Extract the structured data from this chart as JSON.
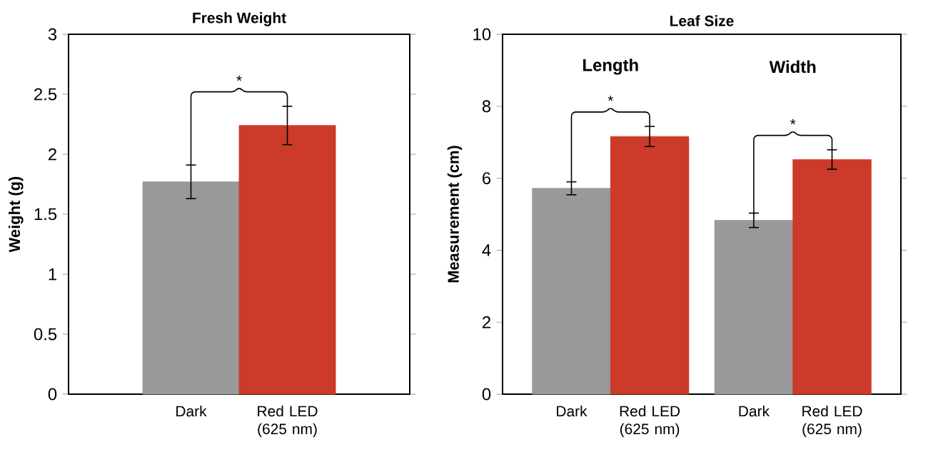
{
  "chart_data": [
    {
      "type": "bar",
      "title": "Fresh Weight",
      "ylabel": "Weight (g)",
      "categories": [
        "Dark",
        "Red LED (625 nm)"
      ],
      "values": [
        1.77,
        2.24
      ],
      "colors": [
        "#999999",
        "#cc3a2a"
      ],
      "errors": [
        0.14,
        0.16
      ],
      "ylim": [
        0,
        3
      ],
      "yticks": [
        0,
        0.5,
        1,
        1.5,
        2,
        2.5,
        3
      ],
      "annotations": [
        "*"
      ]
    },
    {
      "type": "bar",
      "title": "Leaf Size",
      "ylabel": "Measurement (cm)",
      "categories": [
        "Dark",
        "Red LED (625 nm)",
        "Dark",
        "Red LED (625 nm)"
      ],
      "values": [
        5.72,
        7.16,
        4.83,
        6.52
      ],
      "colors": [
        "#999999",
        "#cc3a2a",
        "#999999",
        "#cc3a2a"
      ],
      "errors": [
        0.18,
        0.28,
        0.2,
        0.27
      ],
      "ylim": [
        0,
        10
      ],
      "yticks": [
        0,
        2,
        4,
        6,
        8,
        10
      ],
      "annotations": [
        "Length",
        "Width",
        "*",
        "*"
      ]
    }
  ]
}
